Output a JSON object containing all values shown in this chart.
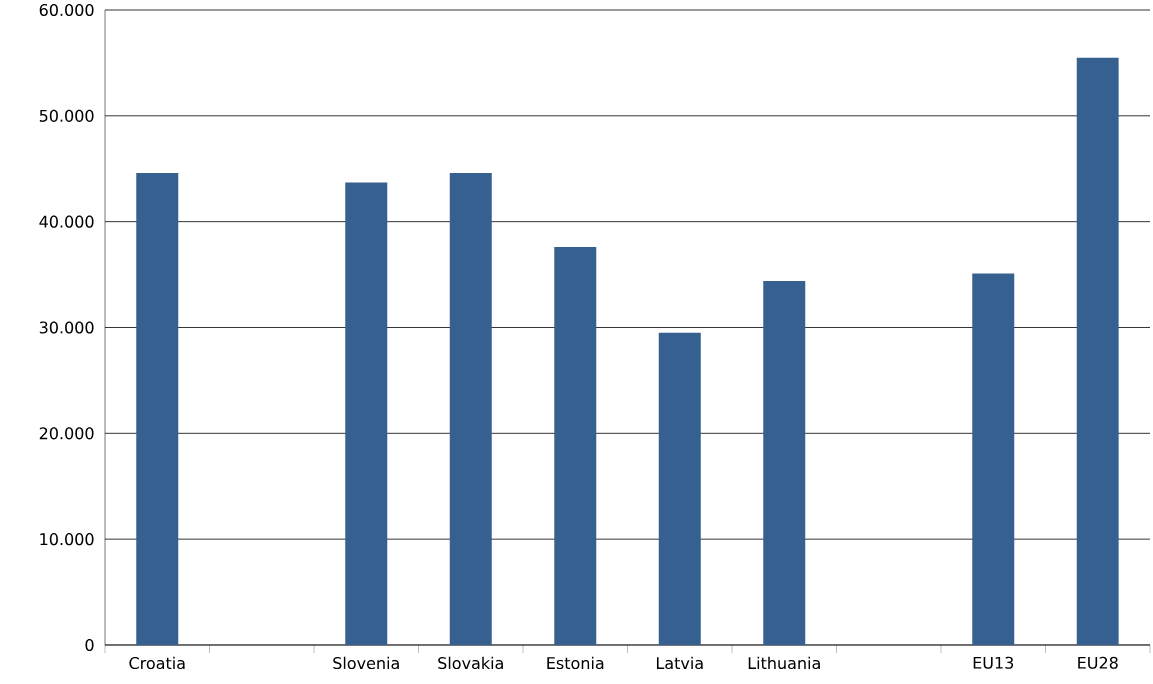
{
  "chart_data": {
    "type": "bar",
    "categories": [
      "Croatia",
      null,
      "Slovenia",
      "Slovakia",
      "Estonia",
      "Latvia",
      "Lithuania",
      null,
      "EU13",
      "EU28"
    ],
    "values": [
      44600,
      null,
      43700,
      44600,
      37600,
      29500,
      34400,
      null,
      35100,
      55500
    ],
    "color": "#36608f",
    "ylim": [
      0,
      60000
    ],
    "yticks": [
      0,
      {
        "value": 10000,
        "label": "10.000"
      },
      {
        "value": 20000,
        "label": "20.000"
      },
      {
        "value": 30000,
        "label": "30.000"
      },
      {
        "value": 40000,
        "label": "40.000"
      },
      {
        "value": 50000,
        "label": "50.000"
      },
      {
        "value": 60000,
        "label": "60.000"
      }
    ],
    "grid": "y"
  }
}
